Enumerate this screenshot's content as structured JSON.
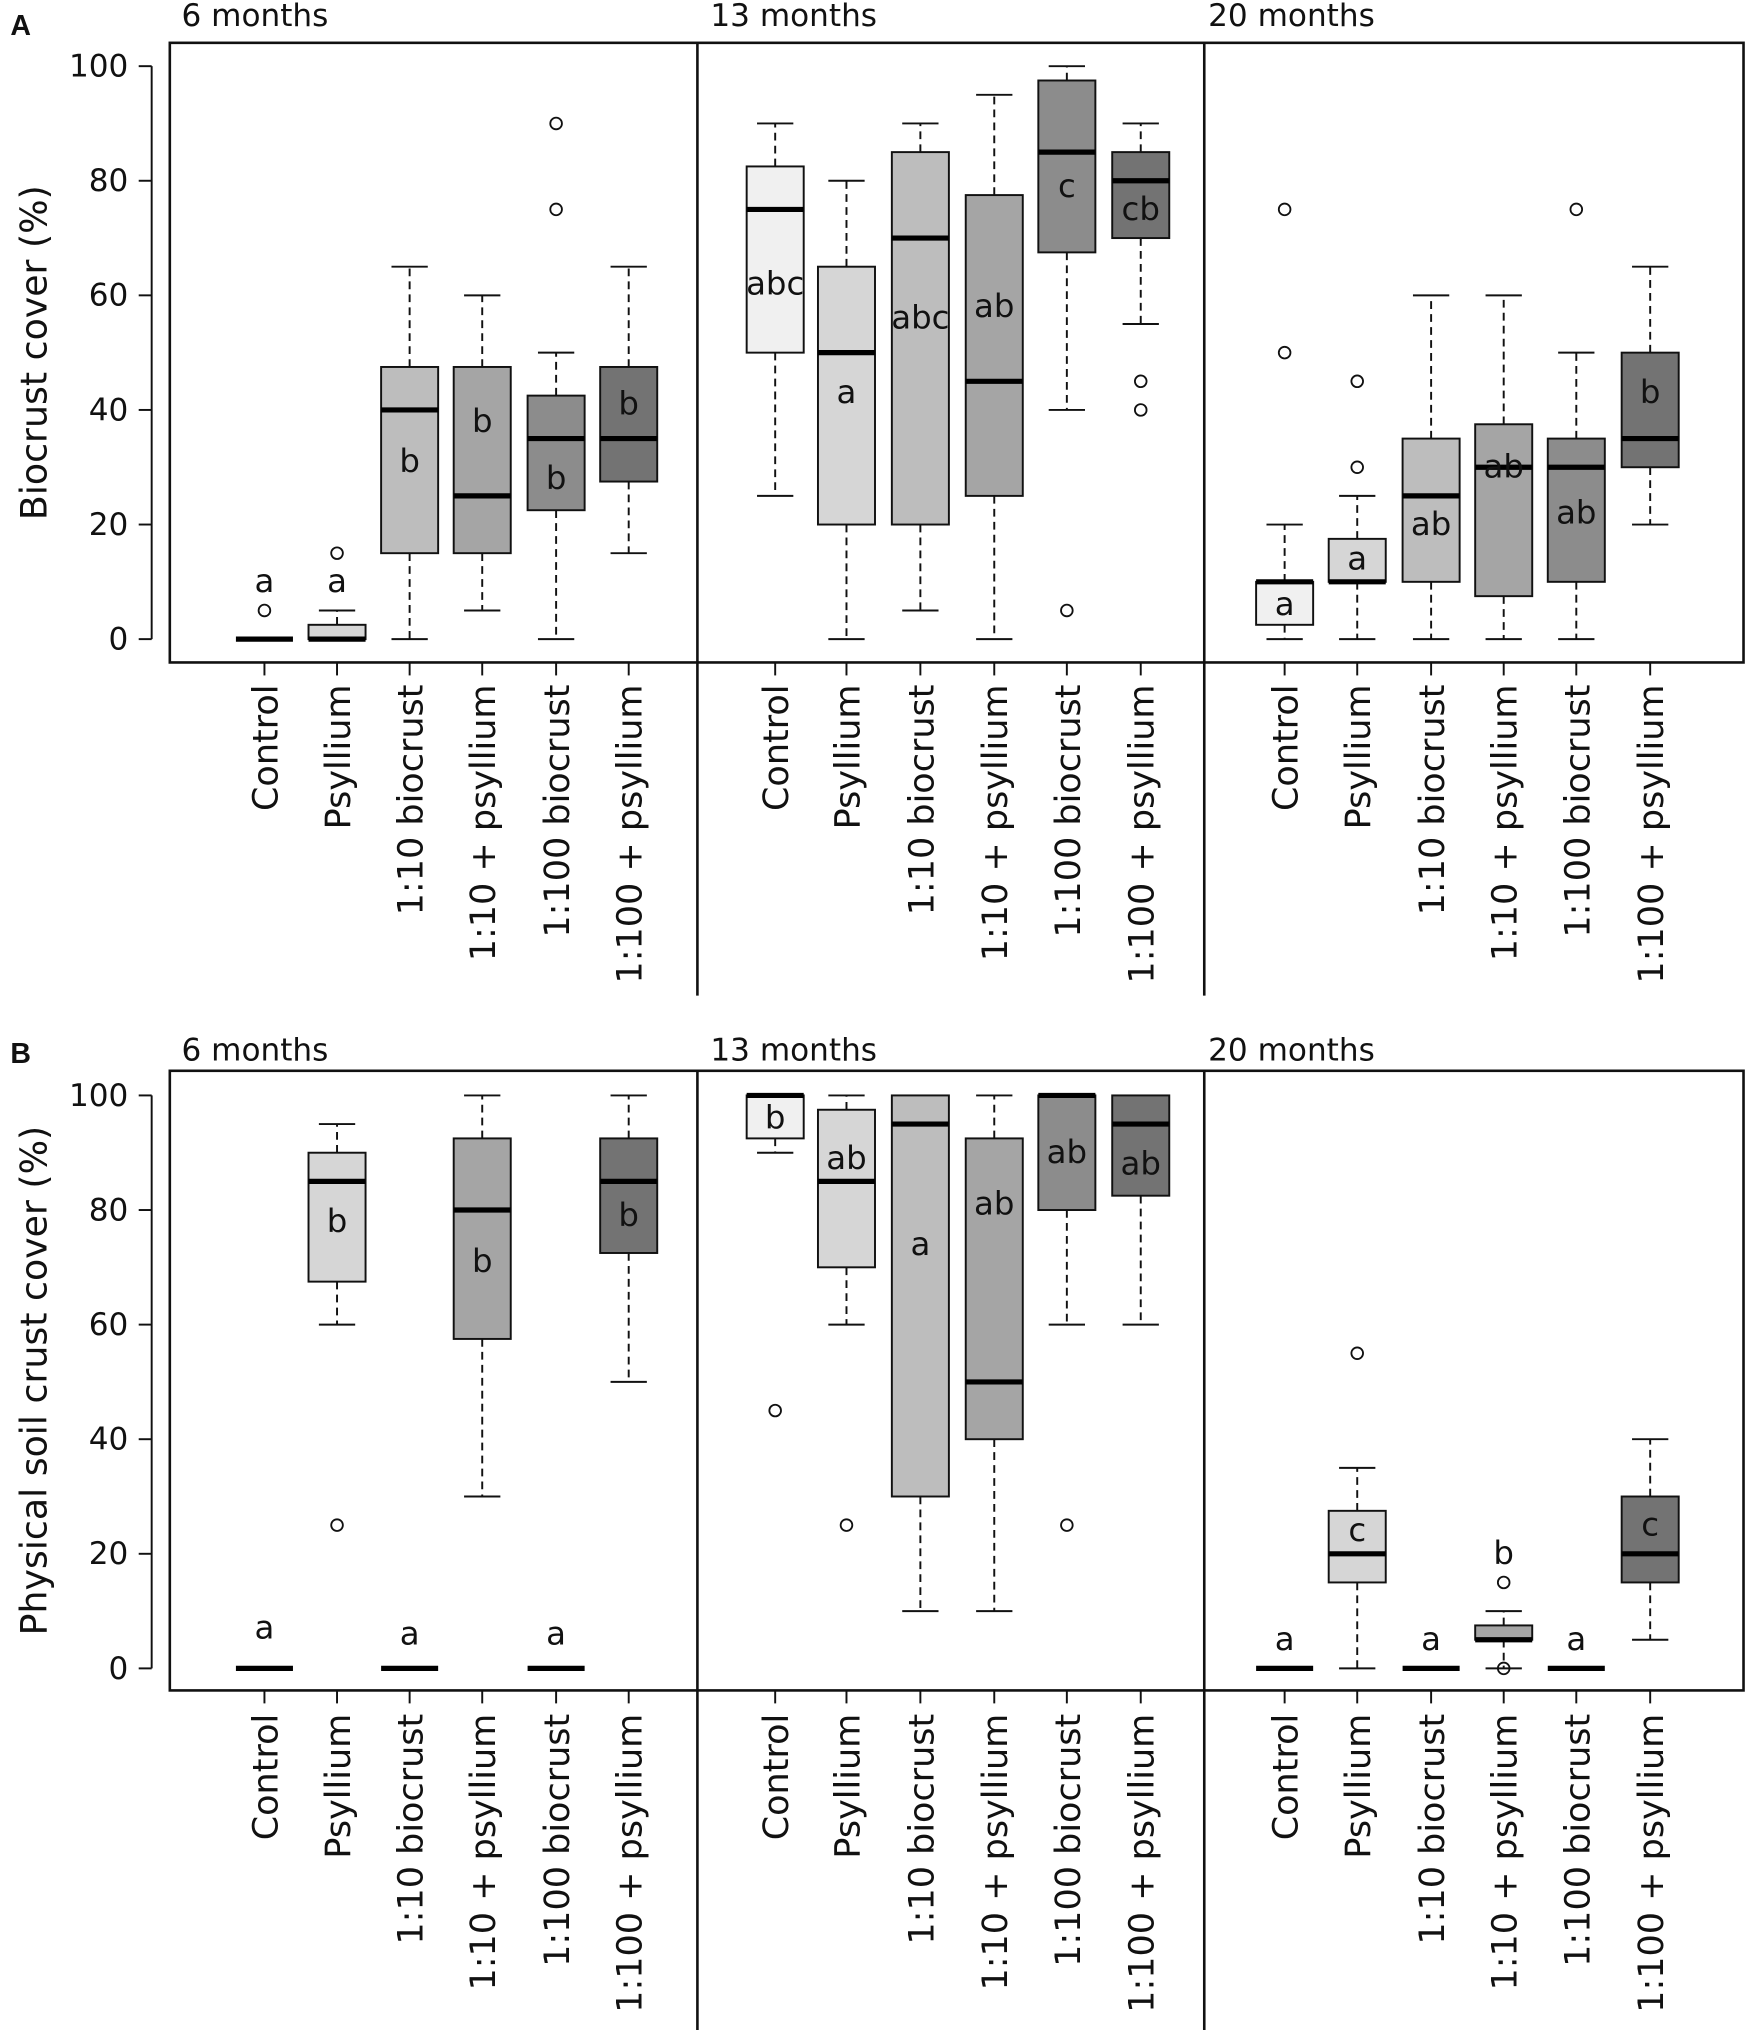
{
  "chart_data": [
    {
      "type": "box",
      "panel_label": "A",
      "ylabel": "Biocrust cover (%)",
      "ylim": [
        0,
        100
      ],
      "yticks": [
        "0",
        "20",
        "40",
        "60",
        "80",
        "100"
      ],
      "categories": [
        "Control",
        "Psyllium",
        "1:10 biocrust",
        "1:10 + psyllium",
        "1:100 biocrust",
        "1:100 + psyllium"
      ],
      "fill_colors": [
        "#f0f0f0",
        "#d6d6d6",
        "#bdbdbd",
        "#a5a5a5",
        "#8c8c8c",
        "#737373"
      ],
      "groups": [
        {
          "title": "6 months",
          "boxes": [
            {
              "q1": 0,
              "median": 0,
              "q3": 0,
              "low": 0,
              "high": 0,
              "outliers": [
                5
              ],
              "letter": "a",
              "letter_at": 10
            },
            {
              "q1": 0,
              "median": 0,
              "q3": 2.5,
              "low": 0,
              "high": 5,
              "outliers": [
                15
              ],
              "letter": "a",
              "letter_at": 10
            },
            {
              "q1": 15,
              "median": 40,
              "q3": 47.5,
              "low": 0,
              "high": 65,
              "outliers": [],
              "letter": "b",
              "letter_at": 31
            },
            {
              "q1": 15,
              "median": 25,
              "q3": 47.5,
              "low": 5,
              "high": 60,
              "outliers": [],
              "letter": "b",
              "letter_at": 38
            },
            {
              "q1": 22.5,
              "median": 35,
              "q3": 42.5,
              "low": 0,
              "high": 50,
              "outliers": [
                75,
                90
              ],
              "letter": "b",
              "letter_at": 28
            },
            {
              "q1": 27.5,
              "median": 35,
              "q3": 47.5,
              "low": 15,
              "high": 65,
              "outliers": [],
              "letter": "b",
              "letter_at": 41
            }
          ]
        },
        {
          "title": "13 months",
          "boxes": [
            {
              "q1": 50,
              "median": 75,
              "q3": 82.5,
              "low": 25,
              "high": 90,
              "outliers": [],
              "letter": "abc",
              "letter_at": 62
            },
            {
              "q1": 20,
              "median": 50,
              "q3": 65,
              "low": 0,
              "high": 80,
              "outliers": [],
              "letter": "a",
              "letter_at": 43
            },
            {
              "q1": 20,
              "median": 70,
              "q3": 85,
              "low": 5,
              "high": 90,
              "outliers": [],
              "letter": "abc",
              "letter_at": 56
            },
            {
              "q1": 25,
              "median": 45,
              "q3": 77.5,
              "low": 0,
              "high": 95,
              "outliers": [],
              "letter": "ab",
              "letter_at": 58
            },
            {
              "q1": 67.5,
              "median": 85,
              "q3": 97.5,
              "low": 40,
              "high": 100,
              "outliers": [
                5
              ],
              "letter": "c",
              "letter_at": 79
            },
            {
              "q1": 70,
              "median": 80,
              "q3": 85,
              "low": 55,
              "high": 90,
              "outliers": [
                40,
                45
              ],
              "letter": "cb",
              "letter_at": 75
            }
          ]
        },
        {
          "title": "20 months",
          "boxes": [
            {
              "q1": 2.5,
              "median": 10,
              "q3": 10,
              "low": 0,
              "high": 20,
              "outliers": [
                50,
                75
              ],
              "letter": "a",
              "letter_at": 6
            },
            {
              "q1": 10,
              "median": 10,
              "q3": 17.5,
              "low": 0,
              "high": 25,
              "outliers": [
                30,
                45
              ],
              "letter": "a",
              "letter_at": 14
            },
            {
              "q1": 10,
              "median": 25,
              "q3": 35,
              "low": 0,
              "high": 60,
              "outliers": [],
              "letter": "ab",
              "letter_at": 20
            },
            {
              "q1": 7.5,
              "median": 30,
              "q3": 37.5,
              "low": 0,
              "high": 60,
              "outliers": [],
              "letter": "ab",
              "letter_at": 30
            },
            {
              "q1": 10,
              "median": 30,
              "q3": 35,
              "low": 0,
              "high": 50,
              "outliers": [
                75
              ],
              "letter": "ab",
              "letter_at": 22
            },
            {
              "q1": 30,
              "median": 35,
              "q3": 50,
              "low": 20,
              "high": 65,
              "outliers": [],
              "letter": "b",
              "letter_at": 43
            }
          ]
        }
      ]
    },
    {
      "type": "box",
      "panel_label": "B",
      "ylabel": "Physical soil crust cover (%)",
      "ylim": [
        0,
        100
      ],
      "yticks": [
        "0",
        "20",
        "40",
        "60",
        "80",
        "100"
      ],
      "categories": [
        "Control",
        "Psyllium",
        "1:10 biocrust",
        "1:10 + psyllium",
        "1:100 biocrust",
        "1:100 + psyllium"
      ],
      "fill_colors": [
        "#f0f0f0",
        "#d6d6d6",
        "#bdbdbd",
        "#a5a5a5",
        "#8c8c8c",
        "#737373"
      ],
      "groups": [
        {
          "title": "6 months",
          "boxes": [
            {
              "q1": 0,
              "median": 0,
              "q3": 0,
              "low": 0,
              "high": 0,
              "outliers": [],
              "letter": "a",
              "letter_at": 7
            },
            {
              "q1": 67.5,
              "median": 85,
              "q3": 90,
              "low": 60,
              "high": 95,
              "outliers": [
                25
              ],
              "letter": "b",
              "letter_at": 78
            },
            {
              "q1": 0,
              "median": 0,
              "q3": 0,
              "low": 0,
              "high": 0,
              "outliers": [],
              "letter": "a",
              "letter_at": 6
            },
            {
              "q1": 57.5,
              "median": 80,
              "q3": 92.5,
              "low": 30,
              "high": 100,
              "outliers": [],
              "letter": "b",
              "letter_at": 71
            },
            {
              "q1": 0,
              "median": 0,
              "q3": 0,
              "low": 0,
              "high": 0,
              "outliers": [],
              "letter": "a",
              "letter_at": 6
            },
            {
              "q1": 72.5,
              "median": 85,
              "q3": 92.5,
              "low": 50,
              "high": 100,
              "outliers": [],
              "letter": "b",
              "letter_at": 79
            }
          ]
        },
        {
          "title": "13 months",
          "boxes": [
            {
              "q1": 92.5,
              "median": 100,
              "q3": 100,
              "low": 90,
              "high": 100,
              "outliers": [
                45
              ],
              "letter": "b",
              "letter_at": 96
            },
            {
              "q1": 70,
              "median": 85,
              "q3": 97.5,
              "low": 60,
              "high": 100,
              "outliers": [
                25
              ],
              "letter": "ab",
              "letter_at": 89
            },
            {
              "q1": 30,
              "median": 95,
              "q3": 100,
              "low": 10,
              "high": 100,
              "outliers": [],
              "letter": "a",
              "letter_at": 74
            },
            {
              "q1": 40,
              "median": 50,
              "q3": 92.5,
              "low": 10,
              "high": 100,
              "outliers": [],
              "letter": "ab",
              "letter_at": 81
            },
            {
              "q1": 80,
              "median": 100,
              "q3": 100,
              "low": 60,
              "high": 100,
              "outliers": [
                25
              ],
              "letter": "ab",
              "letter_at": 90
            },
            {
              "q1": 82.5,
              "median": 95,
              "q3": 100,
              "low": 60,
              "high": 100,
              "outliers": [],
              "letter": "ab",
              "letter_at": 88
            }
          ]
        },
        {
          "title": "20 months",
          "boxes": [
            {
              "q1": 0,
              "median": 0,
              "q3": 0,
              "low": 0,
              "high": 0,
              "outliers": [],
              "letter": "a",
              "letter_at": 5
            },
            {
              "q1": 15,
              "median": 20,
              "q3": 27.5,
              "low": 0,
              "high": 35,
              "outliers": [
                55
              ],
              "letter": "c",
              "letter_at": 24
            },
            {
              "q1": 0,
              "median": 0,
              "q3": 0,
              "low": 0,
              "high": 0,
              "outliers": [],
              "letter": "a",
              "letter_at": 5
            },
            {
              "q1": 5,
              "median": 5,
              "q3": 7.5,
              "low": 0,
              "high": 10,
              "outliers": [
                0,
                15
              ],
              "letter": "b",
              "letter_at": 20
            },
            {
              "q1": 0,
              "median": 0,
              "q3": 0,
              "low": 0,
              "high": 0,
              "outliers": [],
              "letter": "a",
              "letter_at": 5
            },
            {
              "q1": 15,
              "median": 20,
              "q3": 30,
              "low": 5,
              "high": 40,
              "outliers": [],
              "letter": "c",
              "letter_at": 25
            }
          ]
        }
      ]
    }
  ]
}
